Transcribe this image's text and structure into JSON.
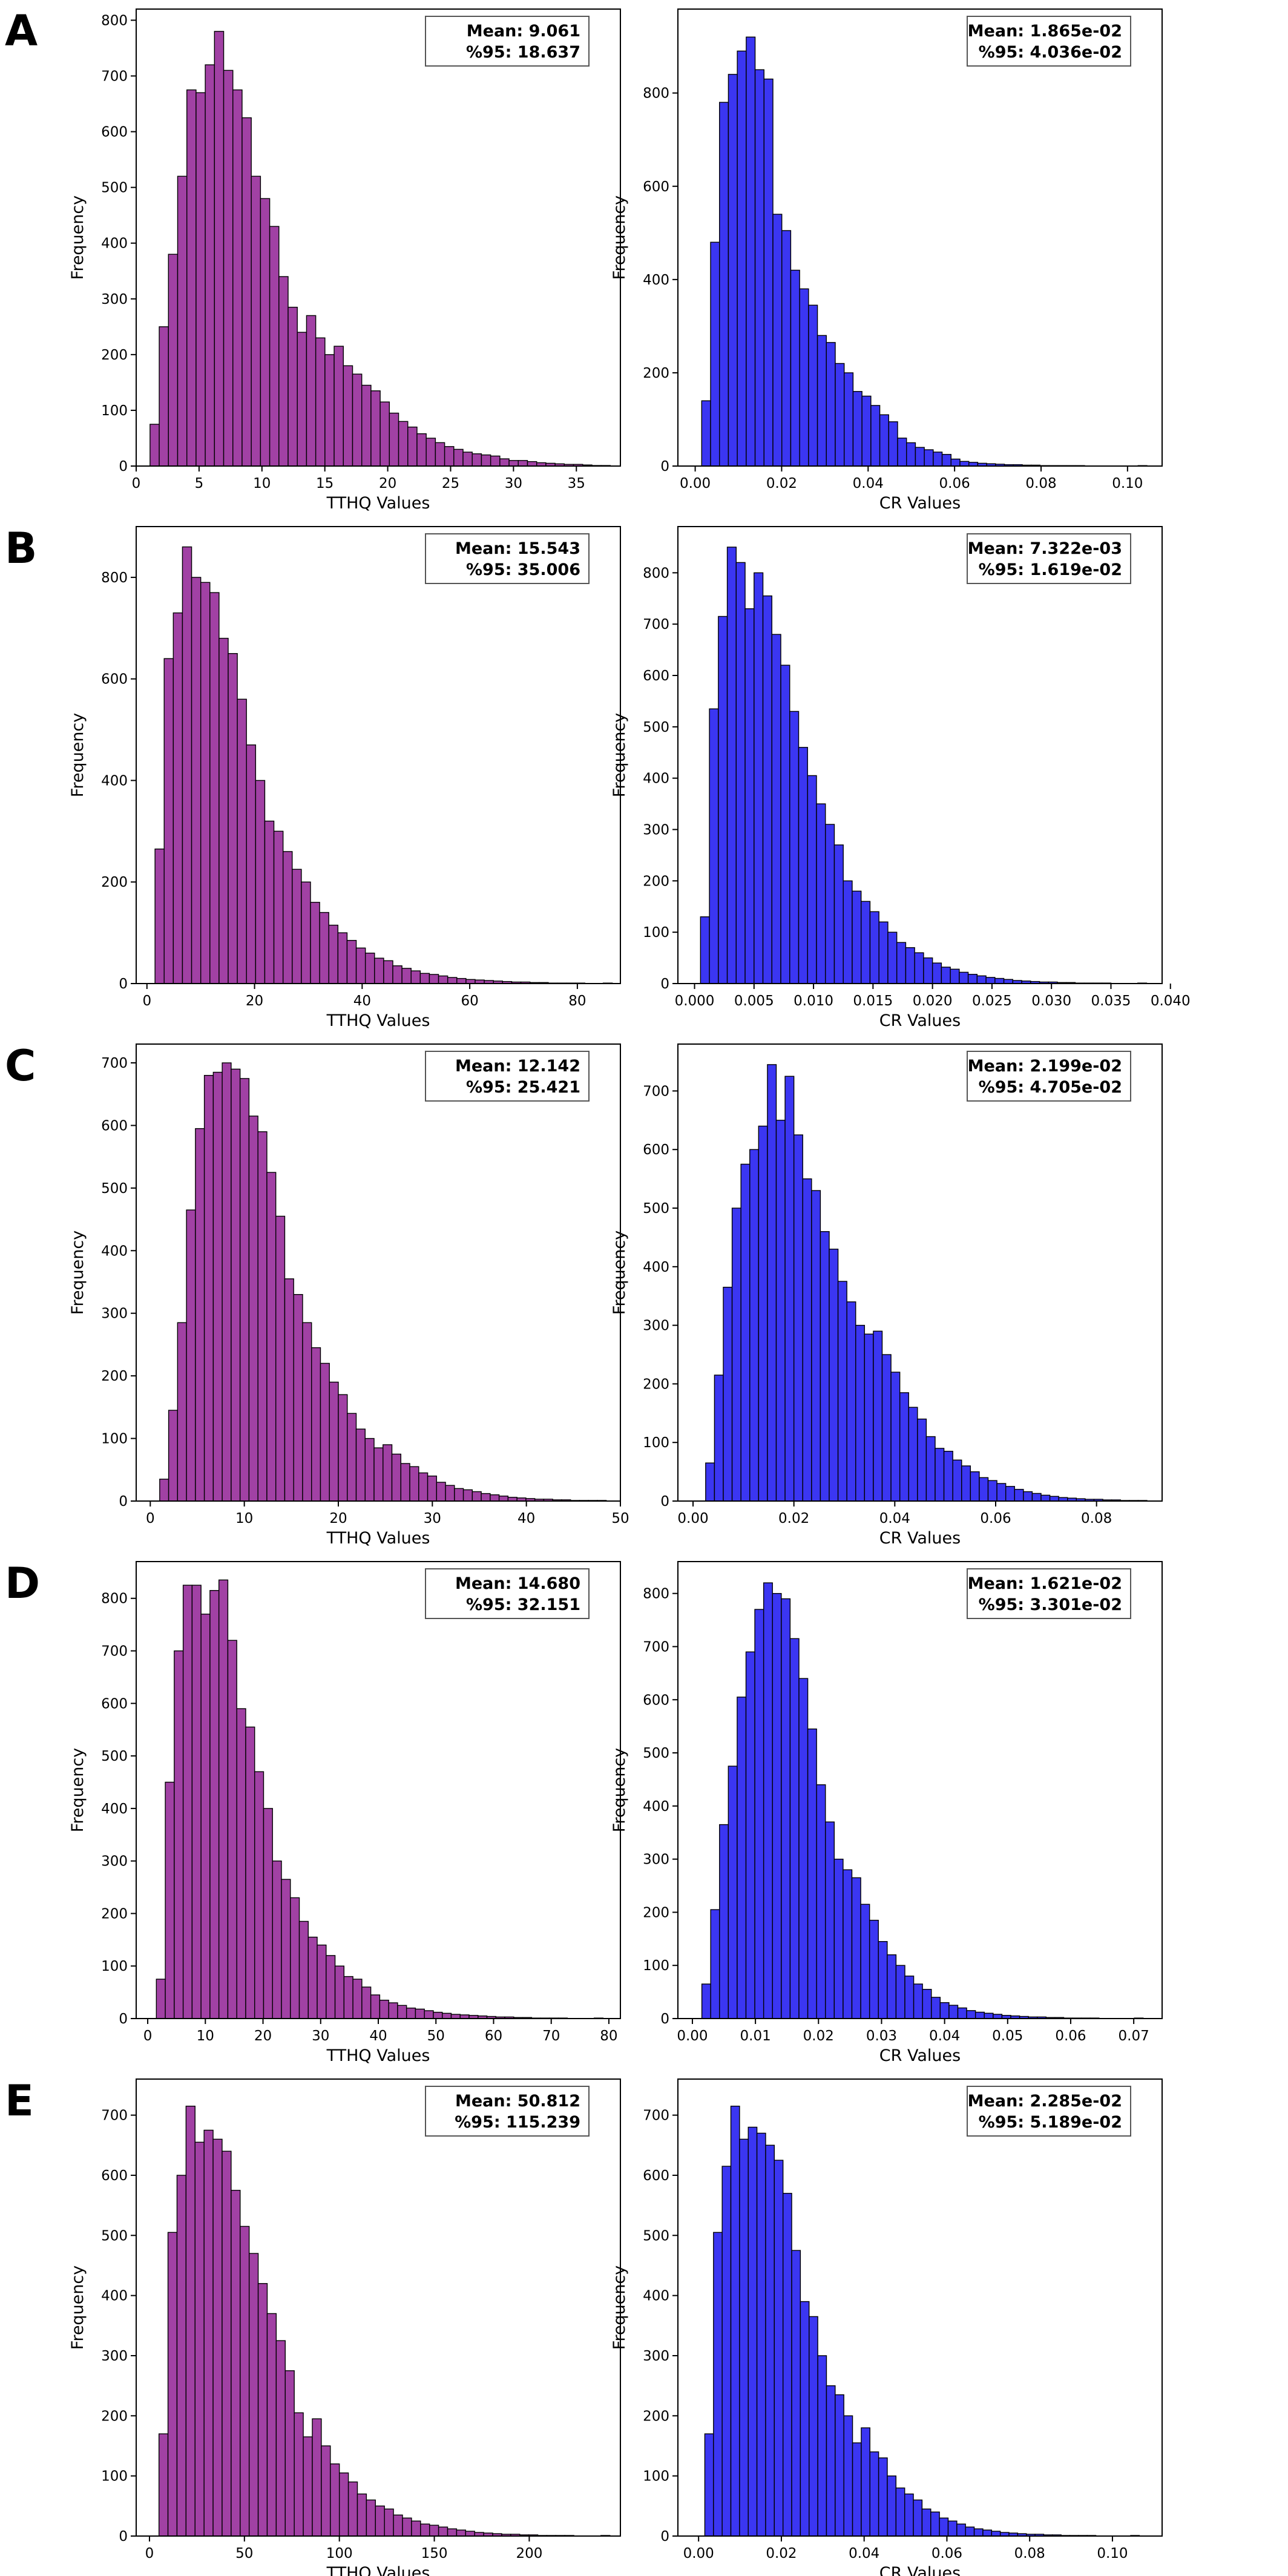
{
  "colors": {
    "tthq": "#a141a4",
    "cr": "#3b36f2"
  },
  "chart_data": [
    {
      "panel": "A",
      "type": "bar",
      "histogram": true,
      "color": "tthq",
      "xlabel": "TTHQ Values",
      "ylabel": "Frequency",
      "stats": {
        "mean": "Mean: 9.061",
        "p95": "%95: 18.637"
      },
      "xlim": [
        0,
        38.5
      ],
      "ylim": [
        0,
        820
      ],
      "xticks": [
        0,
        5,
        10,
        15,
        20,
        25,
        30,
        35
      ],
      "xtick_labels": [
        "0",
        "5",
        "10",
        "15",
        "20",
        "25",
        "30",
        "35"
      ],
      "yticks": [
        0,
        100,
        200,
        300,
        400,
        500,
        600,
        700,
        800
      ],
      "ytick_labels": [
        "0",
        "100",
        "200",
        "300",
        "400",
        "500",
        "600",
        "700",
        "800"
      ],
      "bin_start": 1.1,
      "bin_width": 0.732,
      "values": [
        75,
        250,
        380,
        520,
        675,
        670,
        720,
        780,
        710,
        675,
        625,
        520,
        480,
        430,
        340,
        285,
        240,
        270,
        230,
        200,
        215,
        180,
        165,
        145,
        135,
        115,
        95,
        80,
        70,
        58,
        50,
        42,
        35,
        30,
        25,
        22,
        20,
        18,
        13,
        10,
        10,
        8,
        6,
        5,
        4,
        3,
        3,
        2,
        1,
        1
      ]
    },
    {
      "panel": "A",
      "type": "bar",
      "histogram": true,
      "color": "cr",
      "xlabel": "CR Values",
      "ylabel": "Frequency",
      "stats": {
        "mean": "Mean: 1.865e-02",
        "p95": "%95: 4.036e-02"
      },
      "xlim": [
        -0.004,
        0.108
      ],
      "ylim": [
        0,
        980
      ],
      "xticks": [
        0,
        0.02,
        0.04,
        0.06,
        0.08,
        0.1
      ],
      "xtick_labels": [
        "0.00",
        "0.02",
        "0.04",
        "0.06",
        "0.08",
        "0.10"
      ],
      "yticks": [
        0,
        200,
        400,
        600,
        800
      ],
      "ytick_labels": [
        "0",
        "200",
        "400",
        "600",
        "800"
      ],
      "bin_start": 0.0015,
      "bin_width": 0.00206,
      "values": [
        140,
        480,
        780,
        840,
        890,
        920,
        850,
        830,
        540,
        505,
        420,
        380,
        345,
        280,
        265,
        220,
        200,
        160,
        150,
        130,
        110,
        95,
        60,
        50,
        40,
        35,
        30,
        25,
        15,
        10,
        8,
        6,
        5,
        4,
        3,
        3,
        2,
        2,
        1,
        1,
        1,
        1,
        1,
        0,
        0,
        0,
        0,
        0,
        0,
        1
      ]
    },
    {
      "panel": "B",
      "type": "bar",
      "histogram": true,
      "color": "tthq",
      "xlabel": "TTHQ Values",
      "ylabel": "Frequency",
      "stats": {
        "mean": "Mean: 15.543",
        "p95": "%95: 35.006"
      },
      "xlim": [
        -2,
        88
      ],
      "ylim": [
        0,
        900
      ],
      "xticks": [
        0,
        20,
        40,
        60,
        80
      ],
      "xtick_labels": [
        "0",
        "20",
        "40",
        "60",
        "80"
      ],
      "yticks": [
        0,
        200,
        400,
        600,
        800
      ],
      "ytick_labels": [
        "0",
        "200",
        "400",
        "600",
        "800"
      ],
      "bin_start": 1.5,
      "bin_width": 1.7,
      "values": [
        265,
        640,
        730,
        860,
        800,
        790,
        770,
        680,
        650,
        560,
        470,
        400,
        320,
        300,
        260,
        225,
        200,
        160,
        140,
        115,
        100,
        85,
        70,
        60,
        50,
        45,
        35,
        30,
        25,
        20,
        18,
        15,
        12,
        10,
        8,
        7,
        6,
        5,
        4,
        3,
        3,
        2,
        2,
        1,
        1,
        1,
        1,
        0,
        0,
        1
      ]
    },
    {
      "panel": "B",
      "type": "bar",
      "histogram": true,
      "color": "cr",
      "xlabel": "CR Values",
      "ylabel": "Frequency",
      "stats": {
        "mean": "Mean: 7.322e-03",
        "p95": "%95: 1.619e-02"
      },
      "xlim": [
        -0.0014,
        0.0393
      ],
      "ylim": [
        0,
        890
      ],
      "xticks": [
        0,
        0.005,
        0.01,
        0.015,
        0.02,
        0.025,
        0.03,
        0.035,
        0.04
      ],
      "xtick_labels": [
        "0.000",
        "0.005",
        "0.010",
        "0.015",
        "0.020",
        "0.025",
        "0.030",
        "0.035",
        "0.040"
      ],
      "yticks": [
        0,
        100,
        200,
        300,
        400,
        500,
        600,
        700,
        800
      ],
      "ytick_labels": [
        "0",
        "100",
        "200",
        "300",
        "400",
        "500",
        "600",
        "700",
        "800"
      ],
      "bin_start": 0.0005,
      "bin_width": 0.00075,
      "values": [
        130,
        535,
        715,
        850,
        820,
        730,
        800,
        755,
        680,
        620,
        530,
        460,
        405,
        350,
        310,
        270,
        200,
        180,
        160,
        140,
        120,
        100,
        80,
        70,
        60,
        50,
        40,
        32,
        28,
        22,
        18,
        15,
        12,
        10,
        8,
        6,
        5,
        4,
        3,
        3,
        2,
        2,
        1,
        1,
        1,
        1,
        0,
        0,
        0,
        1
      ]
    },
    {
      "panel": "C",
      "type": "bar",
      "histogram": true,
      "color": "tthq",
      "xlabel": "TTHQ Values",
      "ylabel": "Frequency",
      "stats": {
        "mean": "Mean: 12.142",
        "p95": "%95: 25.421"
      },
      "xlim": [
        -1.5,
        50
      ],
      "ylim": [
        0,
        730
      ],
      "xticks": [
        0,
        10,
        20,
        30,
        40,
        50
      ],
      "xtick_labels": [
        "0",
        "10",
        "20",
        "30",
        "40",
        "50"
      ],
      "yticks": [
        0,
        100,
        200,
        300,
        400,
        500,
        600,
        700
      ],
      "ytick_labels": [
        "0",
        "100",
        "200",
        "300",
        "400",
        "500",
        "600",
        "700"
      ],
      "bin_start": 1.0,
      "bin_width": 0.95,
      "values": [
        35,
        145,
        285,
        465,
        595,
        680,
        685,
        700,
        690,
        675,
        615,
        590,
        525,
        455,
        355,
        330,
        285,
        245,
        220,
        190,
        170,
        140,
        115,
        100,
        85,
        90,
        75,
        60,
        55,
        45,
        40,
        30,
        25,
        20,
        18,
        15,
        12,
        10,
        8,
        6,
        5,
        4,
        3,
        3,
        2,
        2,
        1,
        1,
        1,
        1
      ]
    },
    {
      "panel": "C",
      "type": "bar",
      "histogram": true,
      "color": "cr",
      "xlabel": "CR Values",
      "ylabel": "Frequency",
      "stats": {
        "mean": "Mean: 2.199e-02",
        "p95": "%95: 4.705e-02"
      },
      "xlim": [
        -0.003,
        0.093
      ],
      "ylim": [
        0,
        780
      ],
      "xticks": [
        0,
        0.02,
        0.04,
        0.06,
        0.08
      ],
      "xtick_labels": [
        "0.00",
        "0.02",
        "0.04",
        "0.06",
        "0.08"
      ],
      "yticks": [
        0,
        100,
        200,
        300,
        400,
        500,
        600,
        700
      ],
      "ytick_labels": [
        "0",
        "100",
        "200",
        "300",
        "400",
        "500",
        "600",
        "700"
      ],
      "bin_start": 0.0025,
      "bin_width": 0.00175,
      "values": [
        65,
        215,
        365,
        500,
        575,
        600,
        640,
        745,
        650,
        725,
        625,
        550,
        530,
        460,
        430,
        375,
        340,
        300,
        285,
        290,
        250,
        220,
        185,
        160,
        140,
        110,
        90,
        85,
        70,
        60,
        50,
        40,
        35,
        30,
        25,
        20,
        16,
        13,
        10,
        8,
        6,
        5,
        4,
        3,
        3,
        2,
        2,
        1,
        1,
        1
      ]
    },
    {
      "panel": "D",
      "type": "bar",
      "histogram": true,
      "color": "tthq",
      "xlabel": "TTHQ Values",
      "ylabel": "Frequency",
      "stats": {
        "mean": "Mean: 14.680",
        "p95": "%95: 32.151"
      },
      "xlim": [
        -2,
        82
      ],
      "ylim": [
        0,
        870
      ],
      "xticks": [
        0,
        10,
        20,
        30,
        40,
        50,
        60,
        70,
        80
      ],
      "xtick_labels": [
        "0",
        "10",
        "20",
        "30",
        "40",
        "50",
        "60",
        "70",
        "80"
      ],
      "yticks": [
        0,
        100,
        200,
        300,
        400,
        500,
        600,
        700,
        800
      ],
      "ytick_labels": [
        "0",
        "100",
        "200",
        "300",
        "400",
        "500",
        "600",
        "700",
        "800"
      ],
      "bin_start": 1.5,
      "bin_width": 1.55,
      "values": [
        75,
        450,
        700,
        825,
        825,
        770,
        815,
        835,
        720,
        590,
        555,
        470,
        400,
        300,
        265,
        230,
        185,
        155,
        140,
        120,
        100,
        80,
        75,
        60,
        45,
        35,
        30,
        25,
        20,
        18,
        15,
        12,
        10,
        8,
        7,
        6,
        5,
        4,
        3,
        3,
        2,
        2,
        1,
        1,
        1,
        1,
        0,
        0,
        0,
        1
      ]
    },
    {
      "panel": "D",
      "type": "bar",
      "histogram": true,
      "color": "cr",
      "xlabel": "CR Values",
      "ylabel": "Frequency",
      "stats": {
        "mean": "Mean: 1.621e-02",
        "p95": "%95: 3.301e-02"
      },
      "xlim": [
        -0.0023,
        0.0745
      ],
      "ylim": [
        0,
        860
      ],
      "xticks": [
        0,
        0.01,
        0.02,
        0.03,
        0.04,
        0.05,
        0.06,
        0.07
      ],
      "xtick_labels": [
        "0.00",
        "0.01",
        "0.02",
        "0.03",
        "0.04",
        "0.05",
        "0.06",
        "0.07"
      ],
      "yticks": [
        0,
        100,
        200,
        300,
        400,
        500,
        600,
        700,
        800
      ],
      "ytick_labels": [
        "0",
        "100",
        "200",
        "300",
        "400",
        "500",
        "600",
        "700",
        "800"
      ],
      "bin_start": 0.0015,
      "bin_width": 0.0014,
      "values": [
        65,
        205,
        365,
        475,
        605,
        690,
        770,
        820,
        800,
        790,
        715,
        640,
        545,
        440,
        370,
        300,
        280,
        265,
        215,
        185,
        145,
        120,
        100,
        80,
        65,
        55,
        40,
        30,
        25,
        20,
        15,
        12,
        10,
        8,
        6,
        5,
        4,
        3,
        3,
        2,
        2,
        1,
        1,
        1,
        1,
        0,
        0,
        0,
        0,
        1
      ]
    },
    {
      "panel": "E",
      "type": "bar",
      "histogram": true,
      "color": "tthq",
      "xlabel": "TTHQ Values",
      "ylabel": "Frequency",
      "stats": {
        "mean": "Mean: 50.812",
        "p95": "%95: 115.239"
      },
      "xlim": [
        -7,
        248
      ],
      "ylim": [
        0,
        760
      ],
      "xticks": [
        0,
        50,
        100,
        150,
        200
      ],
      "xtick_labels": [
        "0",
        "50",
        "100",
        "150",
        "200"
      ],
      "yticks": [
        0,
        100,
        200,
        300,
        400,
        500,
        600,
        700
      ],
      "ytick_labels": [
        "0",
        "100",
        "200",
        "300",
        "400",
        "500",
        "600",
        "700"
      ],
      "bin_start": 5,
      "bin_width": 4.75,
      "values": [
        170,
        505,
        600,
        715,
        655,
        675,
        660,
        640,
        575,
        515,
        470,
        420,
        370,
        325,
        275,
        205,
        165,
        195,
        150,
        120,
        105,
        90,
        70,
        60,
        50,
        45,
        35,
        30,
        25,
        20,
        18,
        15,
        12,
        10,
        8,
        6,
        5,
        4,
        3,
        3,
        2,
        2,
        1,
        1,
        1,
        1,
        0,
        0,
        0,
        1
      ]
    },
    {
      "panel": "E",
      "type": "bar",
      "histogram": true,
      "color": "cr",
      "xlabel": "CR Values",
      "ylabel": "Frequency",
      "stats": {
        "mean": "Mean: 2.285e-02",
        "p95": "%95: 5.189e-02"
      },
      "xlim": [
        -0.005,
        0.112
      ],
      "ylim": [
        0,
        760
      ],
      "xticks": [
        0,
        0.02,
        0.04,
        0.06,
        0.08,
        0.1
      ],
      "xtick_labels": [
        "0.00",
        "0.02",
        "0.04",
        "0.06",
        "0.08",
        "0.10"
      ],
      "yticks": [
        0,
        100,
        200,
        300,
        400,
        500,
        600,
        700
      ],
      "ytick_labels": [
        "0",
        "100",
        "200",
        "300",
        "400",
        "500",
        "600",
        "700"
      ],
      "bin_start": 0.0015,
      "bin_width": 0.0021,
      "values": [
        170,
        505,
        615,
        715,
        660,
        680,
        670,
        650,
        625,
        570,
        475,
        390,
        365,
        300,
        250,
        235,
        200,
        155,
        180,
        140,
        130,
        100,
        80,
        70,
        60,
        45,
        40,
        30,
        25,
        20,
        15,
        12,
        10,
        8,
        6,
        5,
        4,
        3,
        3,
        2,
        2,
        1,
        1,
        1,
        1,
        0,
        0,
        0,
        0,
        1
      ]
    }
  ]
}
